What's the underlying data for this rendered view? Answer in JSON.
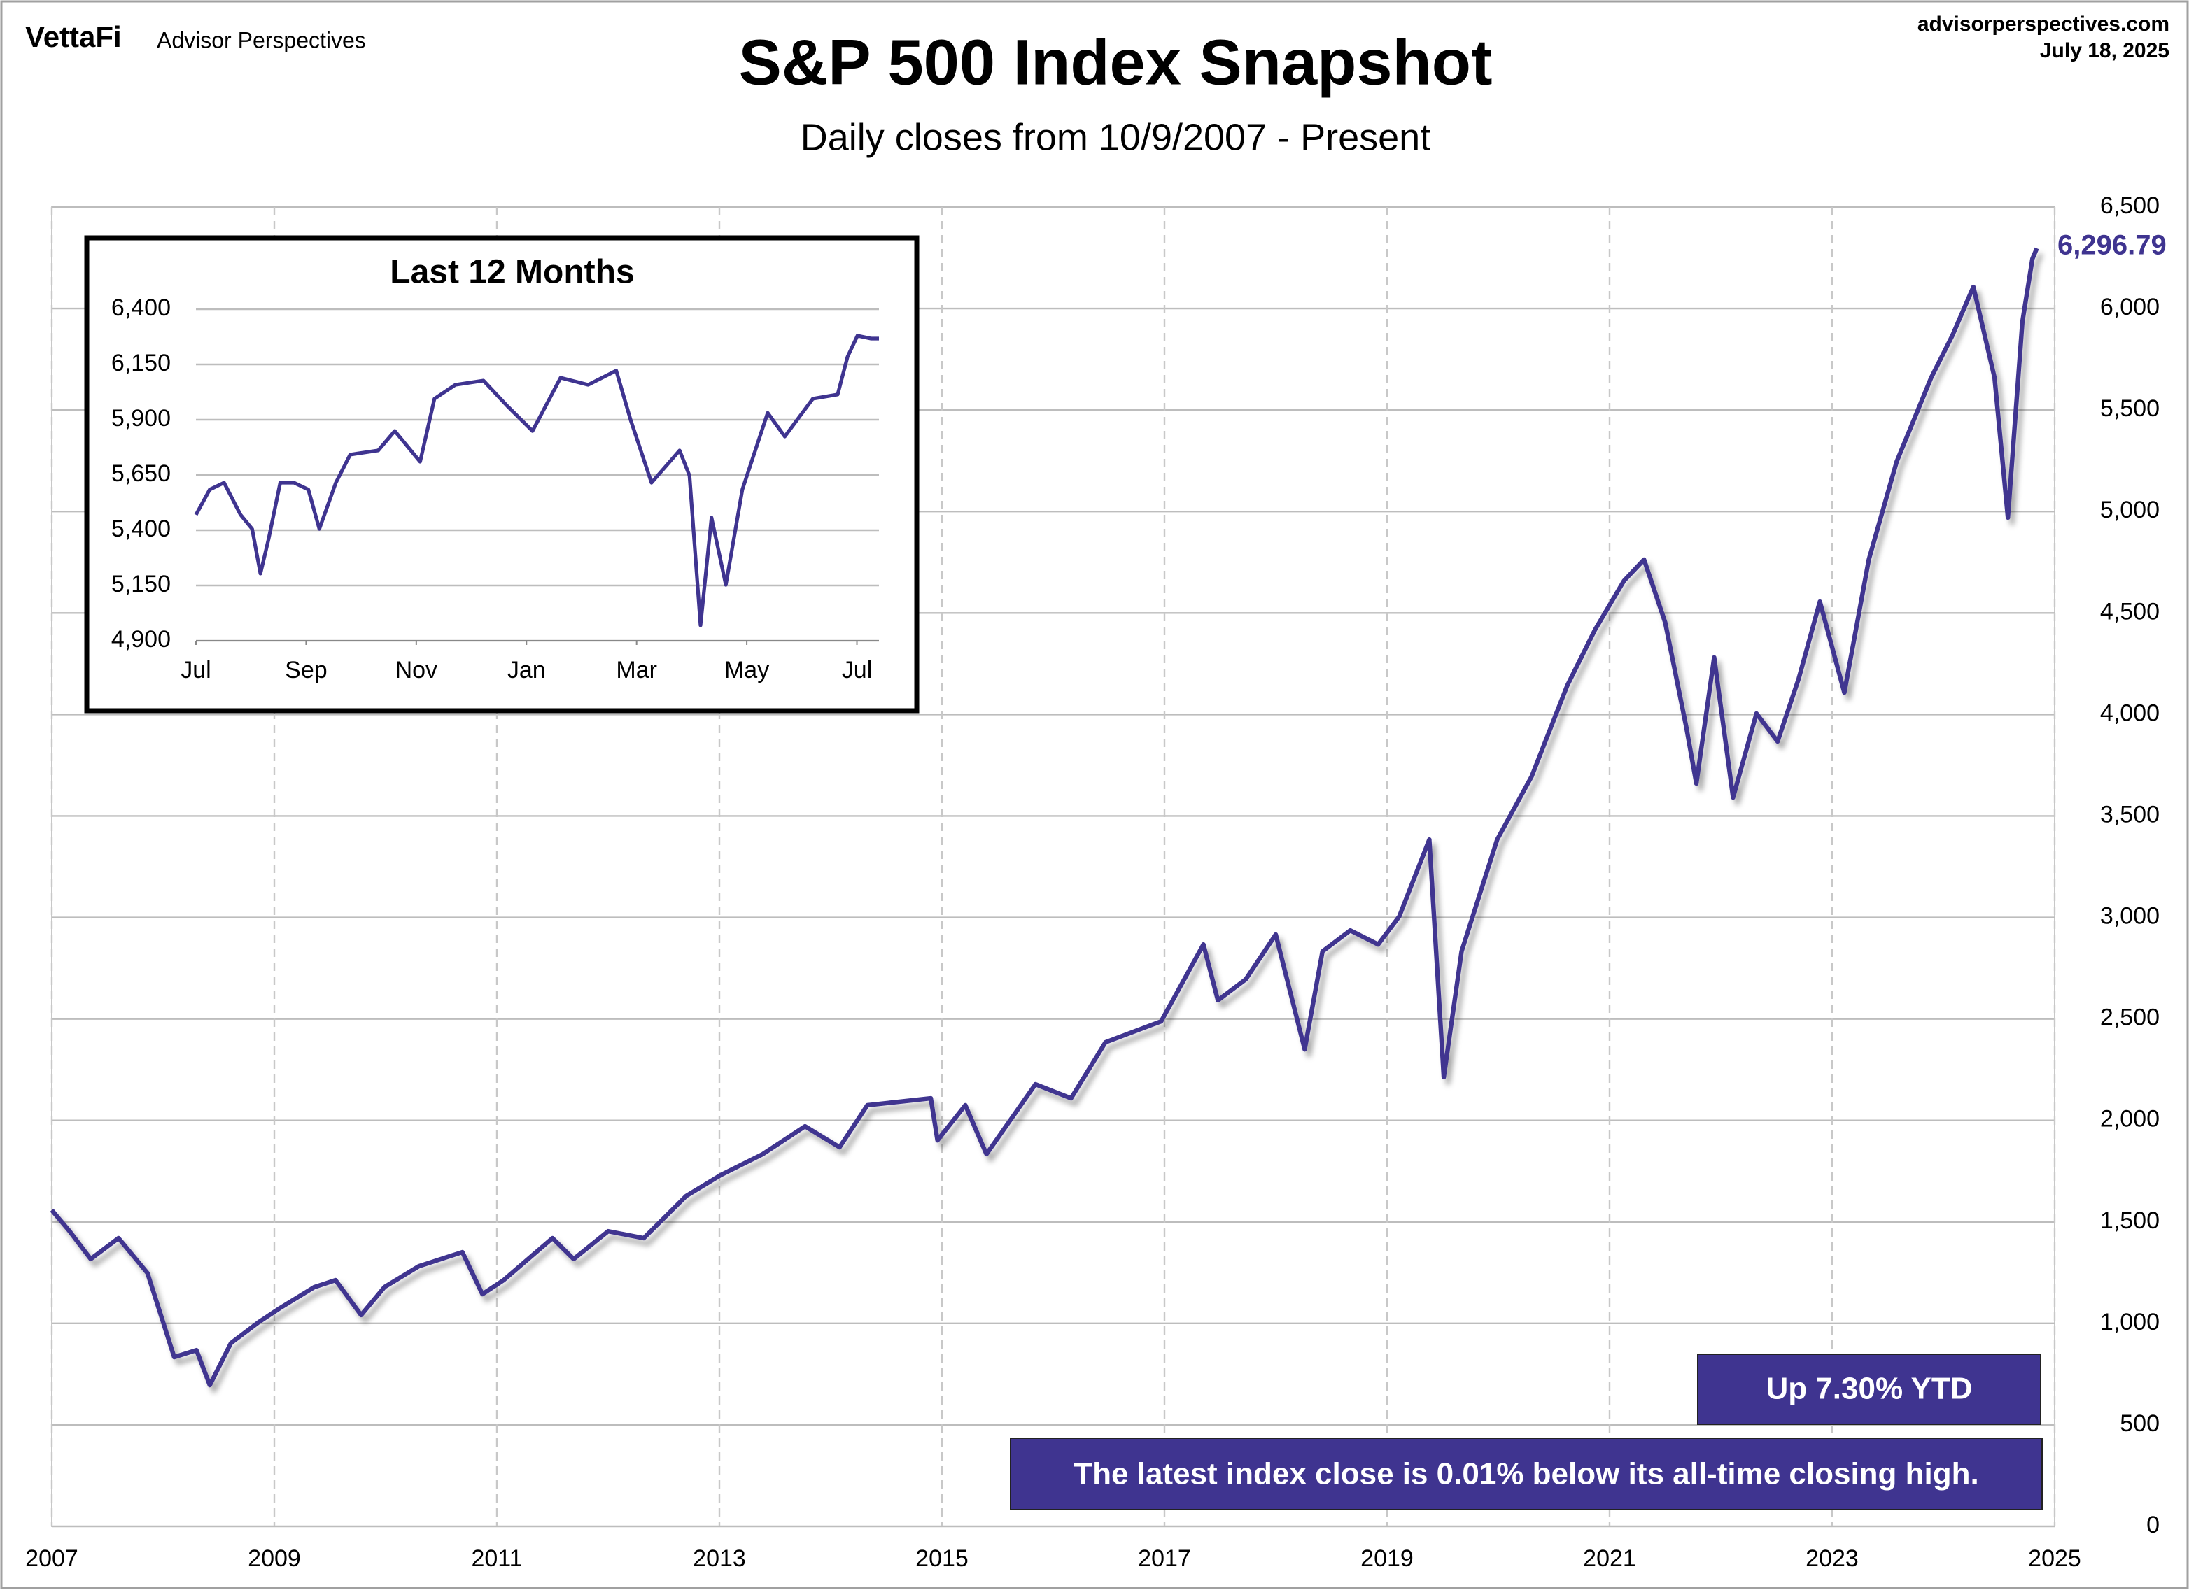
{
  "header": {
    "brand": "VettaFi",
    "publisher": "Advisor Perspectives",
    "site": "advisorperspectives.com",
    "date": "July 18, 2025"
  },
  "chart_data": [
    {
      "type": "line",
      "title": "S&P 500 Index Snapshot",
      "subtitle": "Daily closes from 10/9/2007 - Present",
      "x": [
        2007.0,
        2007.16,
        2007.35,
        2007.6,
        2007.86,
        2007.98,
        2008.1,
        2008.3,
        2008.42,
        2008.61,
        2008.86,
        2009.05,
        2009.36,
        2009.55,
        2009.78,
        2009.99,
        2010.3,
        2010.69,
        2010.87,
        2011.06,
        2011.5,
        2011.69,
        2012.0,
        2012.32,
        2012.7,
        2013.01,
        2013.39,
        2013.77,
        2014.08,
        2014.33,
        2014.9,
        2014.96,
        2015.21,
        2015.4,
        2015.84,
        2016.16,
        2016.47,
        2016.97,
        2017.35,
        2017.48,
        2017.73,
        2018.0,
        2018.26,
        2018.42,
        2018.67,
        2018.92,
        2019.11,
        2019.38,
        2019.51,
        2019.67,
        2019.99,
        2020.3,
        2020.62,
        2020.87,
        2021.13,
        2021.31,
        2021.5,
        2021.69,
        2021.78,
        2021.94,
        2022.11,
        2022.32,
        2022.51,
        2022.7,
        2022.89,
        2023.11,
        2023.33,
        2023.58,
        2023.89,
        2024.08,
        2024.27,
        2024.46,
        2024.58,
        2024.71,
        2024.8,
        2024.84
      ],
      "values": [
        1558,
        1454,
        1317,
        1420,
        1248,
        1041,
        834,
        868,
        696,
        903,
        1006,
        1075,
        1179,
        1213,
        1041,
        1179,
        1282,
        1351,
        1144,
        1213,
        1420,
        1317,
        1454,
        1420,
        1627,
        1730,
        1834,
        1971,
        1868,
        2075,
        2109,
        1902,
        2075,
        1834,
        2178,
        2109,
        2385,
        2488,
        2867,
        2592,
        2695,
        2916,
        2350,
        2833,
        2936,
        2867,
        3005,
        3384,
        2213,
        2833,
        3384,
        3695,
        4143,
        4418,
        4659,
        4763,
        4453,
        3936,
        3660,
        4281,
        3591,
        4005,
        3867,
        4177,
        4556,
        4108,
        4763,
        5245,
        5659,
        5866,
        6107,
        5659,
        4970,
        5935,
        6245,
        6296.79
      ],
      "value_labels": [
        null,
        null,
        null,
        null,
        null,
        null,
        null,
        null,
        null,
        null,
        null,
        null,
        null,
        null,
        null,
        null,
        null,
        null,
        null,
        null,
        null,
        null,
        null,
        null,
        null,
        null,
        null,
        null,
        null,
        null,
        null,
        null,
        null,
        null,
        null,
        null,
        null,
        null,
        null,
        null,
        null,
        null,
        null,
        null,
        null,
        null,
        null,
        null,
        null,
        null,
        null,
        null,
        null,
        null,
        null,
        null,
        null,
        null,
        null,
        null,
        null,
        null,
        null,
        null,
        null,
        null,
        null,
        null,
        null,
        null,
        null,
        null,
        null,
        null,
        null,
        "6,296.79"
      ],
      "color": "#3f3490",
      "xlim": [
        2007,
        2025
      ],
      "xticks": [
        2007,
        2009,
        2011,
        2013,
        2015,
        2017,
        2019,
        2021,
        2023,
        2025
      ],
      "ylim": [
        0,
        6500
      ],
      "yticks": [
        0,
        500,
        {
          "value": 1000,
          "label": "1,000"
        },
        {
          "value": 1500,
          "label": "1,500"
        },
        {
          "value": 2000,
          "label": "2,000"
        },
        {
          "value": 2500,
          "label": "2,500"
        },
        {
          "value": 3000,
          "label": "3,000"
        },
        {
          "value": 3500,
          "label": "3,500"
        },
        {
          "value": 4000,
          "label": "4,000"
        },
        {
          "value": 4500,
          "label": "4,500"
        },
        {
          "value": 5000,
          "label": "5,000"
        },
        {
          "value": 5500,
          "label": "5,500"
        },
        {
          "value": 6000,
          "label": "6,000"
        },
        {
          "value": 6500,
          "label": "6,500"
        }
      ],
      "grid": true,
      "xgrid": true,
      "annotations": [
        "Up 7.30% YTD",
        "The latest index close is 0.01% below its all-time closing high."
      ]
    },
    {
      "type": "line",
      "title": "Last 12 Months",
      "x": [
        0.0,
        0.25,
        0.51,
        0.81,
        1.02,
        1.17,
        1.32,
        1.53,
        1.78,
        2.04,
        2.24,
        2.54,
        2.8,
        3.31,
        3.61,
        4.07,
        4.33,
        4.71,
        5.22,
        5.65,
        6.11,
        6.62,
        7.12,
        7.63,
        7.89,
        8.27,
        8.78,
        8.96,
        9.16,
        9.36,
        9.62,
        9.92,
        10.38,
        10.69,
        11.2,
        11.65,
        11.83,
        12.01,
        12.26,
        12.4
      ],
      "values": [
        5470,
        5584,
        5615,
        5470,
        5406,
        5204,
        5362,
        5615,
        5615,
        5584,
        5406,
        5615,
        5742,
        5761,
        5849,
        5710,
        5995,
        6058,
        6077,
        5963,
        5849,
        6090,
        6058,
        6122,
        5900,
        5615,
        5761,
        5647,
        4970,
        5457,
        5153,
        5584,
        5931,
        5824,
        5995,
        6014,
        6185,
        6280,
        6267,
        6267
      ],
      "color": "#3f3490",
      "xlim": [
        0,
        12.4
      ],
      "xticks": [
        {
          "value": 0,
          "label": "Jul"
        },
        {
          "value": 2,
          "label": "Sep"
        },
        {
          "value": 4,
          "label": "Nov"
        },
        {
          "value": 6,
          "label": "Jan"
        },
        {
          "value": 8,
          "label": "Mar"
        },
        {
          "value": 10,
          "label": "May"
        },
        {
          "value": 12,
          "label": "Jul"
        }
      ],
      "ylim": [
        4900,
        6400
      ],
      "yticks": [
        {
          "value": 4900,
          "label": "4,900"
        },
        {
          "value": 5150,
          "label": "5,150"
        },
        {
          "value": 5400,
          "label": "5,400"
        },
        {
          "value": 5650,
          "label": "5,650"
        },
        {
          "value": 5900,
          "label": "5,900"
        },
        {
          "value": 6150,
          "label": "6,150"
        },
        {
          "value": 6400,
          "label": "6,400"
        }
      ],
      "grid": true,
      "xgrid": false
    }
  ]
}
